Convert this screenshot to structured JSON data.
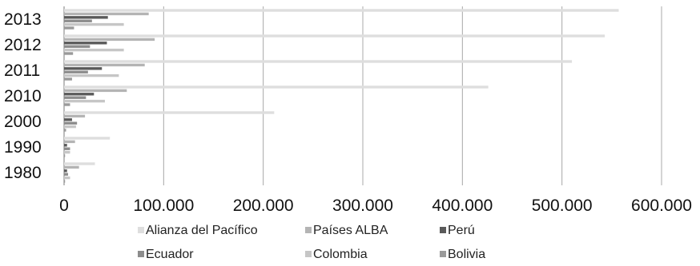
{
  "chart_data": {
    "type": "bar",
    "orientation": "horizontal",
    "categories": [
      "1980",
      "1990",
      "2000",
      "2010",
      "2011",
      "2012",
      "2013"
    ],
    "series": [
      {
        "name": "Alianza del Pacífico",
        "color": "#dedede",
        "values": [
          31000,
          46000,
          211000,
          426000,
          510000,
          543000,
          557000
        ]
      },
      {
        "name": "Países ALBA",
        "color": "#b4b4b4",
        "values": [
          15000,
          11000,
          21000,
          63000,
          81000,
          91000,
          85000
        ]
      },
      {
        "name": "Perú",
        "color": "#5a5a5a",
        "values": [
          3000,
          3000,
          8000,
          30000,
          38000,
          43000,
          44000
        ]
      },
      {
        "name": "Ecuador",
        "color": "#8c8c8c",
        "values": [
          4000,
          6000,
          13000,
          22000,
          24000,
          26000,
          28000
        ]
      },
      {
        "name": "Colombia",
        "color": "#c6c6c6",
        "values": [
          6000,
          6000,
          12000,
          41000,
          55000,
          60000,
          60000
        ]
      },
      {
        "name": "Bolivia",
        "color": "#9a9a9a",
        "values": [
          1000,
          1000,
          2000,
          6000,
          8000,
          9000,
          10000
        ]
      }
    ],
    "xlim": [
      0,
      600000
    ],
    "x_ticks": [
      "0",
      "100.000",
      "200.000",
      "300.000",
      "400.000",
      "500.000",
      "600.000"
    ],
    "grid": "vertical",
    "legend_position": "bottom"
  }
}
